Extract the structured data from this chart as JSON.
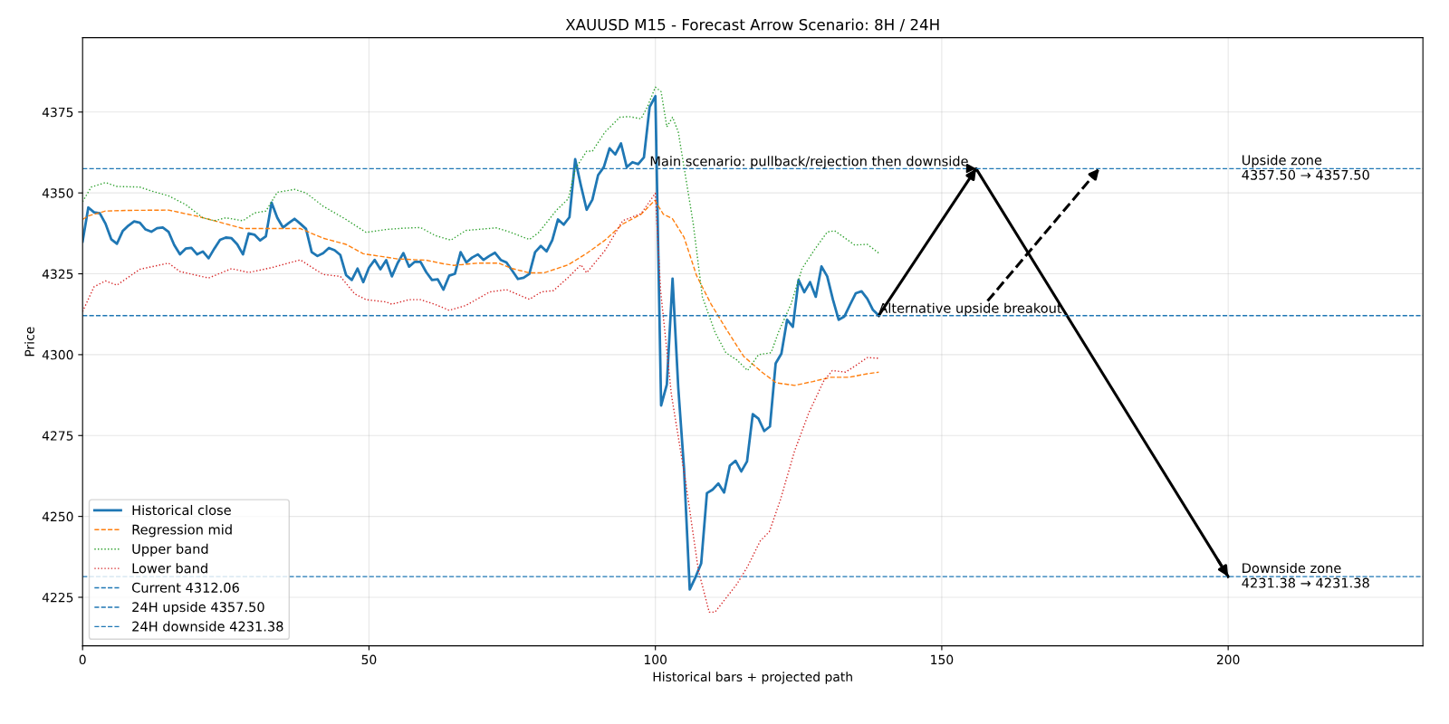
{
  "chart_data": {
    "type": "line",
    "title": "XAUUSD M15 - Forecast Arrow Scenario: 8H / 24H",
    "xlabel": "Historical bars + projected path",
    "ylabel": "Price",
    "xlim": [
      0,
      234
    ],
    "ylim": [
      4210,
      4398
    ],
    "xticks": [
      0,
      50,
      100,
      150,
      200
    ],
    "yticks": [
      4225,
      4250,
      4275,
      4300,
      4325,
      4350,
      4375
    ],
    "grid": true,
    "legend": "bottom left",
    "series": [
      {
        "name": "Historical close",
        "color": "#1f77b4",
        "line_style": "solid",
        "x": [
          0,
          1,
          2,
          3,
          4,
          5,
          6,
          7,
          8,
          9,
          10,
          11,
          12,
          13,
          14,
          15,
          16,
          17,
          18,
          19,
          20,
          21,
          22,
          23,
          24,
          25,
          26,
          27,
          28,
          29,
          30,
          31,
          32,
          33,
          34,
          35,
          36,
          37,
          38,
          39,
          40,
          41,
          42,
          43,
          44,
          45,
          46,
          47,
          48,
          49,
          50,
          51,
          52,
          53,
          54,
          55,
          56,
          57,
          58,
          59,
          60,
          61,
          62,
          63,
          64,
          65,
          66,
          67,
          68,
          69,
          70,
          71,
          72,
          73,
          74,
          75,
          76,
          77,
          78,
          79,
          80,
          81,
          82,
          83,
          84,
          85,
          86,
          87,
          88,
          89,
          90,
          91,
          92,
          93,
          94,
          95,
          96,
          97,
          98,
          99,
          100,
          101,
          102,
          103,
          104,
          105,
          106,
          107,
          108,
          109,
          110,
          111,
          112,
          113,
          114,
          115,
          116,
          117,
          118,
          119,
          120,
          121,
          122,
          123,
          124,
          125,
          126,
          127,
          128,
          129,
          130,
          131,
          132,
          133,
          134,
          135,
          136,
          137,
          138,
          139
        ],
        "values": [
          4335,
          4345.5,
          4344,
          4343.7,
          4340.5,
          4335.7,
          4334.3,
          4338.2,
          4339.9,
          4341.2,
          4340.8,
          4338.7,
          4338,
          4339.1,
          4339.3,
          4338,
          4333.9,
          4331,
          4332.8,
          4333,
          4331,
          4331.9,
          4329.8,
          4332.8,
          4335.5,
          4336.2,
          4336,
          4334.1,
          4331,
          4337.5,
          4337.1,
          4335.3,
          4336.6,
          4347,
          4342.3,
          4339.3,
          4340.7,
          4342,
          4340.5,
          4338.9,
          4331.7,
          4330.5,
          4331.4,
          4333,
          4332.3,
          4330.8,
          4324.6,
          4323.1,
          4326.6,
          4322.4,
          4326.9,
          4329.3,
          4326.4,
          4329.2,
          4324.2,
          4328.3,
          4331.4,
          4327.2,
          4328.7,
          4328.7,
          4325.5,
          4323.1,
          4323.3,
          4320.1,
          4324.4,
          4325,
          4331.7,
          4328.5,
          4330,
          4331,
          4329.3,
          4330.5,
          4331.5,
          4329.3,
          4328.5,
          4326,
          4323.4,
          4323.8,
          4325,
          4331.7,
          4333.6,
          4331.9,
          4335.4,
          4341.8,
          4340.2,
          4342.5,
          4360.4,
          4352.3,
          4344.8,
          4347.9,
          4355.5,
          4358,
          4363.8,
          4361.9,
          4365.3,
          4358,
          4359.5,
          4358.9,
          4361,
          4376.6,
          4379.9,
          4284.3,
          4290.8,
          4323.5,
          4289.7,
          4264.8,
          4227.4,
          4231.2,
          4235.5,
          4257.2,
          4258.3,
          4260.2,
          4257.4,
          4265.7,
          4267.2,
          4263.9,
          4267,
          4281.6,
          4280.2,
          4276.4,
          4277.8,
          4297.3,
          4300.3,
          4310.8,
          4308.6,
          4323.1,
          4319.3,
          4322.4,
          4317.9,
          4327.3,
          4324.2,
          4317,
          4310.8,
          4311.8,
          4315.5,
          4319,
          4319.6,
          4317.3,
          4313.8,
          4312.1
        ]
      },
      {
        "name": "Regression mid",
        "color": "#ff7f0e",
        "line_style": "dashed",
        "x": [
          0,
          1,
          4,
          8,
          15,
          20,
          23,
          28,
          33,
          38,
          42,
          46,
          49,
          55,
          60,
          63,
          64.8,
          69,
          72.7,
          74.8,
          78,
          80.6,
          84.8,
          88,
          91.2,
          94.3,
          97.5,
          99.9,
          101.4,
          103,
          105,
          107.2,
          109.7,
          112.3,
          115.4,
          118.6,
          121.1,
          124.3,
          127.5,
          130.6,
          133.8,
          137,
          139
        ],
        "values": [
          4341.8,
          4342.9,
          4344.4,
          4344.6,
          4344.7,
          4342.8,
          4341.4,
          4339,
          4339,
          4339,
          4336,
          4334.1,
          4331.2,
          4329.6,
          4329.2,
          4328.1,
          4327.6,
          4328.3,
          4328.3,
          4326.7,
          4325.3,
          4325.3,
          4327.8,
          4331.3,
          4335.4,
          4340.4,
          4343.4,
          4347.7,
          4343.4,
          4342,
          4336.3,
          4324.4,
          4315.7,
          4308.1,
          4299.5,
          4294.6,
          4291.3,
          4290.5,
          4291.7,
          4293,
          4293,
          4294.1,
          4294.6
        ]
      },
      {
        "name": "Upper band",
        "color": "#2ca02c",
        "line_style": "dotted",
        "x": [
          0,
          1.5,
          4,
          6,
          10,
          12,
          15,
          18,
          21,
          23,
          25,
          28,
          30,
          32,
          34,
          37,
          39,
          42,
          46,
          49.5,
          53,
          56,
          59,
          61.6,
          64.3,
          66.9,
          72.2,
          74.3,
          78,
          79.6,
          82.7,
          84.8,
          86,
          88,
          89,
          91.2,
          93.8,
          95.4,
          97.5,
          98.6,
          100,
          101,
          102,
          103,
          104,
          105,
          106.6,
          108.2,
          110.4,
          112.3,
          114.2,
          116.1,
          118,
          120.2,
          121.5,
          123.7,
          125.6,
          127.8,
          130,
          131.3,
          132.9,
          134.8,
          137,
          139
        ],
        "values": [
          4347.3,
          4351.8,
          4353.2,
          4352,
          4351.8,
          4350.6,
          4349.1,
          4346.4,
          4342.3,
          4341.4,
          4342.3,
          4341.4,
          4343.8,
          4344.4,
          4350.2,
          4351.1,
          4350,
          4345.9,
          4341.8,
          4337.8,
          4338.7,
          4339.1,
          4339.3,
          4336.8,
          4335.4,
          4338.4,
          4339.2,
          4338.1,
          4335.6,
          4337.7,
          4344.6,
          4348.2,
          4357.4,
          4362.9,
          4362.9,
          4368.8,
          4373.4,
          4373.6,
          4372.9,
          4376.6,
          4382.7,
          4381.3,
          4370.4,
          4373.4,
          4368.8,
          4358,
          4340.6,
          4317.9,
          4307,
          4300.6,
          4298.4,
          4295.1,
          4300,
          4300.6,
          4307,
          4315.7,
          4326.6,
          4332.5,
          4337.9,
          4338.3,
          4336.3,
          4333.9,
          4334.1,
          4331.4
        ]
      },
      {
        "name": "Lower band",
        "color": "#d62728",
        "line_style": "dotted",
        "x": [
          0,
          2,
          4,
          6,
          10,
          15,
          17,
          22,
          26,
          29,
          33,
          38,
          42,
          45,
          47.5,
          49.5,
          53,
          54,
          57,
          59,
          61.6,
          64,
          66.9,
          71.1,
          74,
          78,
          80.1,
          82.2,
          84.8,
          87,
          88,
          91.2,
          94.3,
          97.5,
          100,
          100.9,
          102.8,
          105.3,
          107.5,
          109.4,
          110.4,
          112.3,
          114.2,
          116.1,
          118.3,
          119.9,
          121.8,
          124.3,
          126.8,
          129.4,
          130.9,
          133.2,
          135.1,
          137,
          139
        ],
        "values": [
          4313.3,
          4321,
          4322.8,
          4321.5,
          4326.4,
          4328.3,
          4325.7,
          4323.7,
          4326.6,
          4325.4,
          4326.9,
          4329.3,
          4324.8,
          4324.2,
          4318.8,
          4317,
          4316.3,
          4315.6,
          4317,
          4317,
          4315.5,
          4313.7,
          4315.2,
          4319.4,
          4320.1,
          4317.1,
          4319.4,
          4319.8,
          4323.9,
          4327.8,
          4325.3,
          4332.2,
          4341.4,
          4343.6,
          4349.9,
          4320,
          4287.6,
          4260.5,
          4233.4,
          4220.4,
          4220.4,
          4224.7,
          4229,
          4234.5,
          4242.4,
          4245.3,
          4255,
          4270.2,
          4282.1,
          4291.9,
          4295.1,
          4294.6,
          4296.8,
          4299.1,
          4298.9
        ]
      },
      {
        "color": "#000000",
        "line_style": "solid",
        "x": [
          139,
          156,
          200
        ],
        "values": [
          4312.1,
          4357.5,
          4231.4
        ]
      },
      {
        "color": "#000000",
        "line_style": "dashed",
        "x": [
          158,
          177.5
        ],
        "values": [
          4316.6,
          4357.5
        ]
      }
    ],
    "ref_lines": [
      {
        "axis": "y",
        "value": 4312.06,
        "label": "Current 4312.06",
        "color": "#1f77b4",
        "line_style": "dashed"
      },
      {
        "axis": "y",
        "value": 4357.5,
        "label": "24H upside 4357.50",
        "color": "#1f77b4",
        "line_style": "dashed"
      },
      {
        "axis": "y",
        "value": 4231.38,
        "label": "24H downside 4231.38",
        "color": "#1f77b4",
        "line_style": "dashed"
      }
    ],
    "annotations": [
      {
        "text": "Main scenario: pullback/rejection then downside",
        "x": 99,
        "y": 4357.5
      },
      {
        "text": "Alternative upside breakout",
        "x": 139,
        "y": 4312.06
      },
      {
        "text": "Upside zone\n4357.50 → 4357.50",
        "x": 202.3,
        "y": 4357.5
      },
      {
        "text": "Downside zone\n4231.38 → 4231.38",
        "x": 202.3,
        "y": 4231.38
      }
    ]
  }
}
